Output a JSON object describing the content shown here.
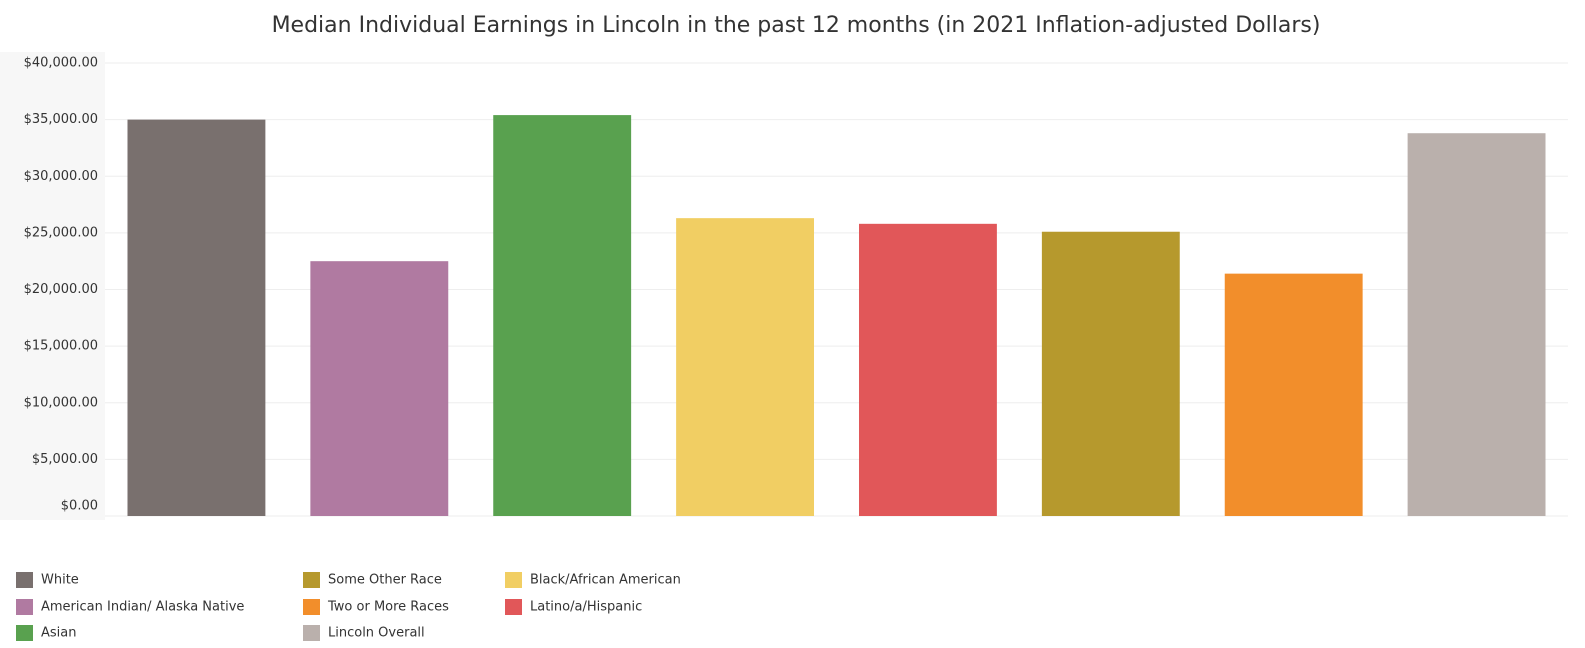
{
  "chart_data": {
    "type": "bar",
    "title": "Median Individual Earnings in Lincoln in the past 12 months (in 2021 Inflation-adjusted Dollars)",
    "categories": [
      "White",
      "American Indian/ Alaska Native",
      "Asian",
      "Black/African American",
      "Latino/a/Hispanic",
      "Some Other Race",
      "Two or More Races",
      "Lincoln Overall"
    ],
    "values": [
      35000,
      22500,
      35400,
      26300,
      25800,
      25100,
      21400,
      33800
    ],
    "colors": [
      "#79706e",
      "#b07aa1",
      "#59a14f",
      "#f1ce63",
      "#e15759",
      "#b6992d",
      "#f28e2b",
      "#bab0ac"
    ],
    "ylim": [
      0,
      40000
    ],
    "yticks": [
      {
        "value": 0,
        "label": "$0.00"
      },
      {
        "value": 5000,
        "label": "$5,000.00"
      },
      {
        "value": 10000,
        "label": "$10,000.00"
      },
      {
        "value": 15000,
        "label": "$15,000.00"
      },
      {
        "value": 20000,
        "label": "$20,000.00"
      },
      {
        "value": 25000,
        "label": "$25,000.00"
      },
      {
        "value": 30000,
        "label": "$30,000.00"
      },
      {
        "value": 35000,
        "label": "$35,000.00"
      },
      {
        "value": 40000,
        "label": "$40,000.00"
      }
    ],
    "grid": true
  }
}
